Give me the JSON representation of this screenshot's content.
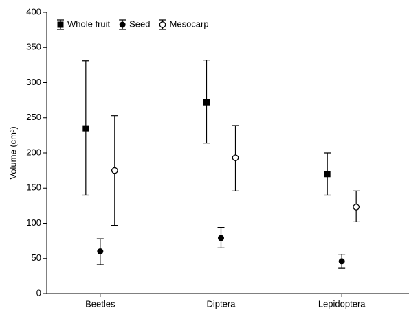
{
  "chart_data": {
    "type": "errorbar",
    "y_label": "Volume (cm³)",
    "categories": [
      "Beetles",
      "Diptera",
      "Lepidoptera"
    ],
    "ylim": [
      0,
      400
    ],
    "yticks": [
      0,
      50,
      100,
      150,
      200,
      250,
      300,
      350,
      400
    ],
    "legend": "top-left",
    "series": [
      {
        "name": "Whole fruit",
        "marker": "square",
        "color": "#000000",
        "values": [
          235,
          272,
          170
        ],
        "low": [
          140,
          214,
          140
        ],
        "high": [
          331,
          332,
          200
        ]
      },
      {
        "name": "Seed",
        "marker": "circle",
        "color": "#000000",
        "values": [
          60,
          79,
          46
        ],
        "low": [
          41,
          65,
          36
        ],
        "high": [
          78,
          94,
          56
        ]
      },
      {
        "name": "Mesocarp",
        "marker": "open-circle",
        "color": "#000000",
        "values": [
          175,
          193,
          123
        ],
        "low": [
          97,
          146,
          102
        ],
        "high": [
          253,
          239,
          146
        ]
      }
    ]
  }
}
